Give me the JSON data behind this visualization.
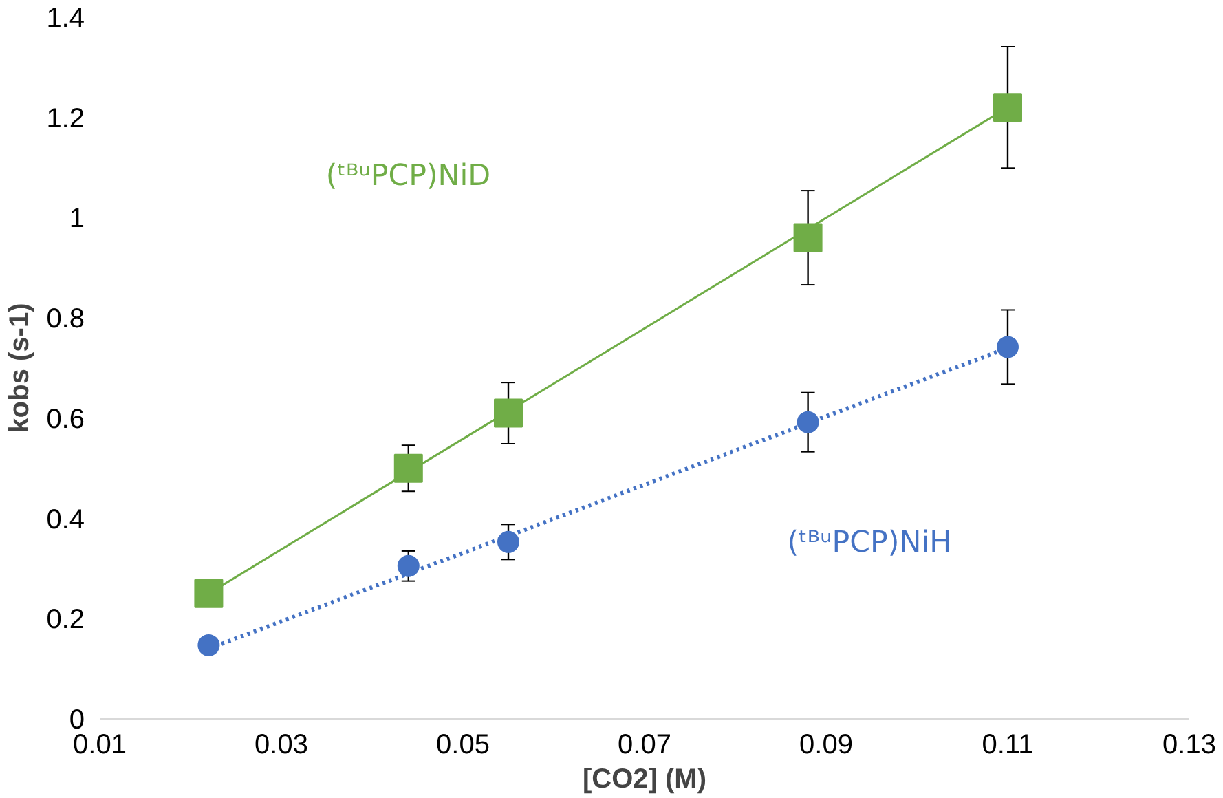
{
  "chart_data": {
    "type": "scatter",
    "xlabel": "[CO2] (M)",
    "ylabel": "kobs (s-1)",
    "xlim": [
      0.01,
      0.13
    ],
    "xticks": [
      0.01,
      0.03,
      0.05,
      0.07,
      0.09,
      0.11,
      0.13
    ],
    "ylim": [
      0,
      1.4
    ],
    "yticks": [
      0,
      0.2,
      0.4,
      0.6,
      0.8,
      1,
      1.2,
      1.4
    ],
    "grid": false,
    "series": [
      {
        "name": "(ᵗᴮᵘPCP)NiD",
        "marker": "square",
        "color": "#70ad47",
        "x": [
          0.022,
          0.044,
          0.055,
          0.088,
          0.11
        ],
        "values": [
          0.25,
          0.5,
          0.61,
          0.96,
          1.22
        ],
        "errors": [
          null,
          0.046,
          0.061,
          0.094,
          0.121
        ]
      },
      {
        "name": "(ᵗᴮᵘPCP)NiH",
        "marker": "circle",
        "color": "#4472c4",
        "x": [
          0.022,
          0.044,
          0.055,
          0.088,
          0.11
        ],
        "values": [
          0.147,
          0.305,
          0.353,
          0.592,
          0.742
        ],
        "errors": [
          null,
          0.03,
          0.035,
          0.059,
          0.074
        ]
      },
      {
        "type": "line",
        "line_style": "solid",
        "color": "#70ad47",
        "x": [
          0.022,
          0.11
        ],
        "values": [
          0.25,
          1.22
        ]
      },
      {
        "type": "line",
        "line_style": "dotted",
        "color": "#4472c4",
        "x": [
          0.022,
          0.11
        ],
        "values": [
          0.14,
          0.74
        ]
      }
    ]
  }
}
